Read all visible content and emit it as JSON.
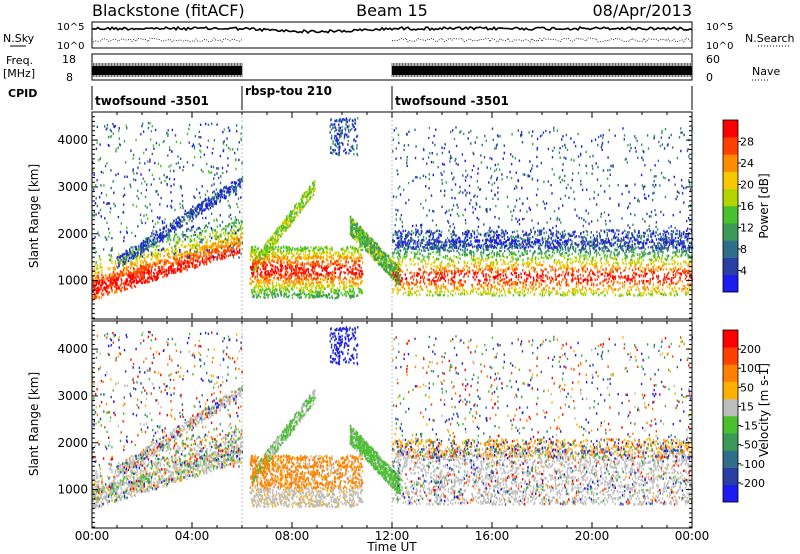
{
  "header": {
    "title_left": "Blackstone (fitACF)",
    "title_center": "Beam 15",
    "title_right": "08/Apr/2013"
  },
  "top_panels": {
    "nsky_label": "N.Sky",
    "nsearch_label": "N.Search",
    "nsearch_ticks": [
      "10^5",
      "10^0"
    ],
    "nsky_ticks": [
      "10^5",
      "10^0"
    ],
    "freq_label_line1": "Freq.",
    "freq_label_line2": "[MHz]",
    "freq_ticks": [
      "18",
      "8"
    ],
    "nave_label": "Nave",
    "nave_ticks": [
      "60",
      "0"
    ],
    "cpid_label": "CPID",
    "cpid_segments": [
      "twofsound -3501",
      "rbsp-tou 210",
      "twofsound -3501"
    ]
  },
  "colors": {
    "power_scale": [
      "#1c1cf0",
      "#2a3fa3",
      "#2f6e8a",
      "#3c9a58",
      "#48c030",
      "#b4d400",
      "#f5c800",
      "#ff8c00",
      "#ff4000",
      "#ff0000"
    ],
    "velocity_scale": [
      "#1c1cf0",
      "#2a3fa3",
      "#2f6e8a",
      "#3c9a58",
      "#48c030",
      "#bdbdbd",
      "#ffb000",
      "#ff8000",
      "#ff4000",
      "#ff0000"
    ]
  },
  "chart_data": [
    {
      "type": "heatmap",
      "name": "power",
      "ylabel": "Slant Range [km]",
      "ylim": [
        180,
        4600
      ],
      "y_ticks": [
        1000,
        2000,
        3000,
        4000
      ],
      "xlim": [
        0,
        24
      ],
      "colorbar_label": "Power [dB]",
      "colorbar_ticks": [
        "28",
        "24",
        "20",
        "16",
        "12",
        "8",
        "4"
      ],
      "colorbar_range": [
        0,
        30
      ]
    },
    {
      "type": "heatmap",
      "name": "velocity",
      "ylabel": "Slant Range [km]",
      "ylim": [
        180,
        4600
      ],
      "y_ticks": [
        1000,
        2000,
        3000,
        4000
      ],
      "xlim": [
        0,
        24
      ],
      "colorbar_label": "Velocity [m s-1]",
      "colorbar_ticks": [
        "200",
        "100",
        "50",
        "15",
        "-15",
        "-50",
        "-100",
        "-200"
      ],
      "xlabel": "Time UT",
      "x_ticks": [
        "00:00",
        "04:00",
        "08:00",
        "12:00",
        "16:00",
        "20:00",
        "00:00"
      ]
    }
  ]
}
